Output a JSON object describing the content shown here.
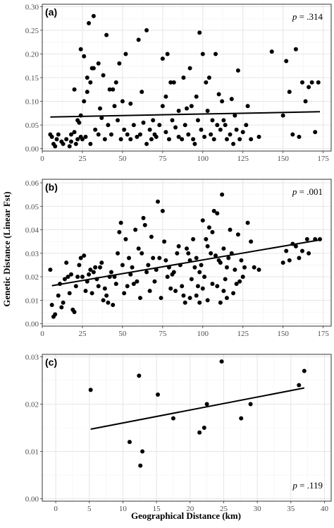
{
  "chart_data": [
    {
      "type": "scatter",
      "panel_label": "(a)",
      "annotation": {
        "italic": "p",
        "text": " = .314"
      },
      "xlim": [
        0,
        180
      ],
      "ylim": [
        -0.005,
        0.305
      ],
      "xticks": [
        0,
        25,
        50,
        75,
        100,
        125,
        150,
        175
      ],
      "yticks": [
        0.0,
        0.05,
        0.1,
        0.15,
        0.2,
        0.25,
        0.3
      ],
      "ytick_labels": [
        "0.00",
        "0.05",
        "0.10",
        "0.15",
        "0.20",
        "0.25",
        "0.30"
      ],
      "xtick_labels": [
        "0",
        "25",
        "50",
        "75",
        "100",
        "125",
        "150",
        "175"
      ],
      "trend_line": {
        "x": [
          5,
          173
        ],
        "y": [
          0.067,
          0.078
        ]
      },
      "grid": true,
      "points": [
        [
          5,
          0.03
        ],
        [
          6,
          0.025
        ],
        [
          7,
          0.01
        ],
        [
          8,
          0.005
        ],
        [
          9,
          0.02
        ],
        [
          10,
          0.03
        ],
        [
          12,
          0.015
        ],
        [
          13,
          0.01
        ],
        [
          15,
          0.02
        ],
        [
          17,
          0.005
        ],
        [
          18,
          0.015
        ],
        [
          18,
          0.03
        ],
        [
          20,
          0.035
        ],
        [
          21,
          0.01
        ],
        [
          22,
          0.02
        ],
        [
          23,
          0.055
        ],
        [
          24,
          0.07
        ],
        [
          25,
          0.02
        ],
        [
          26,
          0.1
        ],
        [
          28,
          0.12
        ],
        [
          30,
          0.14
        ],
        [
          31,
          0.17
        ],
        [
          32,
          0.17
        ],
        [
          24,
          0.21
        ],
        [
          26,
          0.195
        ],
        [
          28,
          0.15
        ],
        [
          29,
          0.265
        ],
        [
          32,
          0.28
        ],
        [
          35,
          0.18
        ],
        [
          36,
          0.085
        ],
        [
          38,
          0.155
        ],
        [
          40,
          0.24
        ],
        [
          42,
          0.125
        ],
        [
          44,
          0.125
        ],
        [
          46,
          0.14
        ],
        [
          48,
          0.18
        ],
        [
          50,
          0.1
        ],
        [
          52,
          0.2
        ],
        [
          55,
          0.095
        ],
        [
          60,
          0.23
        ],
        [
          62,
          0.12
        ],
        [
          65,
          0.25
        ],
        [
          68,
          0.02
        ],
        [
          70,
          0.03
        ],
        [
          75,
          0.19
        ],
        [
          77,
          0.11
        ],
        [
          78,
          0.2
        ],
        [
          80,
          0.14
        ],
        [
          82,
          0.14
        ],
        [
          85,
          0.025
        ],
        [
          88,
          0.15
        ],
        [
          90,
          0.085
        ],
        [
          92,
          0.17
        ],
        [
          94,
          0.02
        ],
        [
          96,
          0.11
        ],
        [
          98,
          0.245
        ],
        [
          100,
          0.2
        ],
        [
          102,
          0.14
        ],
        [
          104,
          0.15
        ],
        [
          106,
          0.06
        ],
        [
          108,
          0.2
        ],
        [
          110,
          0.115
        ],
        [
          112,
          0.1
        ],
        [
          114,
          0.05
        ],
        [
          118,
          0.105
        ],
        [
          120,
          0.07
        ],
        [
          122,
          0.165
        ],
        [
          125,
          0.035
        ],
        [
          128,
          0.09
        ],
        [
          130,
          0.02
        ],
        [
          135,
          0.025
        ],
        [
          143,
          0.205
        ],
        [
          150,
          0.07
        ],
        [
          152,
          0.185
        ],
        [
          154,
          0.12
        ],
        [
          156,
          0.03
        ],
        [
          158,
          0.21
        ],
        [
          160,
          0.025
        ],
        [
          162,
          0.14
        ],
        [
          164,
          0.1
        ],
        [
          166,
          0.13
        ],
        [
          168,
          0.14
        ],
        [
          170,
          0.035
        ],
        [
          172,
          0.14
        ],
        [
          20,
          0.125
        ],
        [
          22,
          0.06
        ],
        [
          24,
          0.025
        ],
        [
          27,
          0.025
        ],
        [
          30,
          0.01
        ],
        [
          33,
          0.04
        ],
        [
          35,
          0.03
        ],
        [
          37,
          0.065
        ],
        [
          39,
          0.02
        ],
        [
          41,
          0.05
        ],
        [
          43,
          0.03
        ],
        [
          45,
          0.09
        ],
        [
          47,
          0.06
        ],
        [
          49,
          0.02
        ],
        [
          51,
          0.04
        ],
        [
          53,
          0.03
        ],
        [
          55,
          0.02
        ],
        [
          57,
          0.05
        ],
        [
          59,
          0.025
        ],
        [
          61,
          0.03
        ],
        [
          63,
          0.055
        ],
        [
          65,
          0.01
        ],
        [
          67,
          0.04
        ],
        [
          69,
          0.06
        ],
        [
          71,
          0.025
        ],
        [
          73,
          0.05
        ],
        [
          75,
          0.09
        ],
        [
          77,
          0.035
        ],
        [
          79,
          0.02
        ],
        [
          81,
          0.06
        ],
        [
          83,
          0.045
        ],
        [
          85,
          0.08
        ],
        [
          87,
          0.02
        ],
        [
          89,
          0.05
        ],
        [
          91,
          0.03
        ],
        [
          93,
          0.09
        ],
        [
          95,
          0.01
        ],
        [
          97,
          0.06
        ],
        [
          99,
          0.04
        ],
        [
          101,
          0.025
        ],
        [
          103,
          0.08
        ],
        [
          105,
          0.03
        ],
        [
          107,
          0.02
        ],
        [
          109,
          0.05
        ],
        [
          111,
          0.04
        ],
        [
          113,
          0.06
        ],
        [
          115,
          0.02
        ],
        [
          117,
          0.03
        ],
        [
          119,
          0.01
        ],
        [
          121,
          0.04
        ],
        [
          123,
          0.02
        ],
        [
          127,
          0.05
        ]
      ]
    },
    {
      "type": "scatter",
      "panel_label": "(b)",
      "annotation": {
        "italic": "p",
        "text": " = .001"
      },
      "xlim": [
        0,
        180
      ],
      "ylim": [
        -0.001,
        0.0615
      ],
      "xticks": [
        0,
        25,
        50,
        75,
        100,
        125,
        150,
        175
      ],
      "yticks": [
        0.0,
        0.01,
        0.02,
        0.03,
        0.04,
        0.05,
        0.06
      ],
      "ytick_labels": [
        "0.00",
        "0.01",
        "0.02",
        "0.03",
        "0.04",
        "0.05",
        "0.06"
      ],
      "xtick_labels": [
        "0",
        "25",
        "50",
        "75",
        "100",
        "125",
        "150",
        "175"
      ],
      "trend_line": {
        "x": [
          6,
          173
        ],
        "y": [
          0.0162,
          0.0357
        ]
      },
      "grid": true,
      "points": [
        [
          5,
          0.023
        ],
        [
          6,
          0.008
        ],
        [
          7,
          0.003
        ],
        [
          8,
          0.004
        ],
        [
          10,
          0.012
        ],
        [
          11,
          0.017
        ],
        [
          12,
          0.007
        ],
        [
          13,
          0.009
        ],
        [
          15,
          0.026
        ],
        [
          16,
          0.02
        ],
        [
          18,
          0.021
        ],
        [
          19,
          0.006
        ],
        [
          20,
          0.005
        ],
        [
          22,
          0.02
        ],
        [
          23,
          0.025
        ],
        [
          24,
          0.028
        ],
        [
          25,
          0.02
        ],
        [
          26,
          0.029
        ],
        [
          27,
          0.014
        ],
        [
          28,
          0.018
        ],
        [
          30,
          0.023
        ],
        [
          32,
          0.022
        ],
        [
          33,
          0.024
        ],
        [
          35,
          0.016
        ],
        [
          37,
          0.026
        ],
        [
          38,
          0.01
        ],
        [
          40,
          0.012
        ],
        [
          42,
          0.02
        ],
        [
          44,
          0.008
        ],
        [
          45,
          0.02
        ],
        [
          47,
          0.03
        ],
        [
          48,
          0.039
        ],
        [
          49,
          0.043
        ],
        [
          50,
          0.025
        ],
        [
          52,
          0.036
        ],
        [
          54,
          0.028
        ],
        [
          55,
          0.021
        ],
        [
          57,
          0.017
        ],
        [
          58,
          0.04
        ],
        [
          60,
          0.032
        ],
        [
          62,
          0.03
        ],
        [
          63,
          0.045
        ],
        [
          64,
          0.042
        ],
        [
          66,
          0.025
        ],
        [
          68,
          0.037
        ],
        [
          70,
          0.018
        ],
        [
          72,
          0.052
        ],
        [
          73,
          0.028
        ],
        [
          75,
          0.048
        ],
        [
          76,
          0.035
        ],
        [
          78,
          0.02
        ],
        [
          80,
          0.015
        ],
        [
          82,
          0.022
        ],
        [
          84,
          0.03
        ],
        [
          86,
          0.025
        ],
        [
          88,
          0.012
        ],
        [
          90,
          0.032
        ],
        [
          91,
          0.03
        ],
        [
          92,
          0.027
        ],
        [
          93,
          0.019
        ],
        [
          94,
          0.036
        ],
        [
          95,
          0.024
        ],
        [
          96,
          0.028
        ],
        [
          97,
          0.016
        ],
        [
          98,
          0.022
        ],
        [
          99,
          0.025
        ],
        [
          100,
          0.044
        ],
        [
          101,
          0.02
        ],
        [
          102,
          0.036
        ],
        [
          103,
          0.033
        ],
        [
          104,
          0.041
        ],
        [
          105,
          0.03
        ],
        [
          106,
          0.039
        ],
        [
          107,
          0.048
        ],
        [
          108,
          0.029
        ],
        [
          109,
          0.047
        ],
        [
          110,
          0.027
        ],
        [
          111,
          0.026
        ],
        [
          112,
          0.055
        ],
        [
          113,
          0.032
        ],
        [
          114,
          0.019
        ],
        [
          115,
          0.024
        ],
        [
          116,
          0.028
        ],
        [
          117,
          0.04
        ],
        [
          118,
          0.03
        ],
        [
          120,
          0.023
        ],
        [
          122,
          0.038
        ],
        [
          124,
          0.027
        ],
        [
          125,
          0.02
        ],
        [
          128,
          0.043
        ],
        [
          130,
          0.035
        ],
        [
          132,
          0.024
        ],
        [
          135,
          0.023
        ],
        [
          150,
          0.026
        ],
        [
          152,
          0.031
        ],
        [
          154,
          0.027
        ],
        [
          156,
          0.034
        ],
        [
          158,
          0.033
        ],
        [
          160,
          0.028
        ],
        [
          162,
          0.031
        ],
        [
          165,
          0.036
        ],
        [
          166,
          0.03
        ],
        [
          170,
          0.036
        ],
        [
          173,
          0.036
        ],
        [
          14,
          0.019
        ],
        [
          17,
          0.013
        ],
        [
          21,
          0.016
        ],
        [
          29,
          0.021
        ],
        [
          31,
          0.013
        ],
        [
          34,
          0.019
        ],
        [
          36,
          0.024
        ],
        [
          39,
          0.015
        ],
        [
          41,
          0.009
        ],
        [
          43,
          0.022
        ],
        [
          46,
          0.017
        ],
        [
          51,
          0.013
        ],
        [
          53,
          0.016
        ],
        [
          56,
          0.024
        ],
        [
          59,
          0.018
        ],
        [
          61,
          0.011
        ],
        [
          65,
          0.022
        ],
        [
          67,
          0.014
        ],
        [
          69,
          0.028
        ],
        [
          71,
          0.023
        ],
        [
          74,
          0.011
        ],
        [
          77,
          0.027
        ],
        [
          79,
          0.024
        ],
        [
          81,
          0.021
        ],
        [
          83,
          0.014
        ],
        [
          85,
          0.033
        ],
        [
          87,
          0.016
        ],
        [
          89,
          0.009
        ],
        [
          92,
          0.011
        ],
        [
          96,
          0.012
        ],
        [
          98,
          0.009
        ],
        [
          100,
          0.015
        ],
        [
          103,
          0.01
        ],
        [
          106,
          0.017
        ],
        [
          109,
          0.016
        ],
        [
          111,
          0.009
        ],
        [
          113,
          0.014
        ],
        [
          115,
          0.011
        ],
        [
          119,
          0.013
        ],
        [
          121,
          0.017
        ],
        [
          123,
          0.018
        ],
        [
          126,
          0.024
        ]
      ]
    },
    {
      "type": "scatter",
      "panel_label": "(c)",
      "annotation": {
        "italic": "p",
        "text": " = .119"
      },
      "xlim": [
        -2,
        41
      ],
      "ylim": [
        -0.0005,
        0.0305
      ],
      "xticks": [
        0,
        5,
        10,
        15,
        20,
        25,
        30,
        35,
        40
      ],
      "yticks": [
        0.0,
        0.01,
        0.02,
        0.03
      ],
      "ytick_labels": [
        "0.00",
        "0.01",
        "0.02",
        "0.03"
      ],
      "xtick_labels": [
        "0",
        "5",
        "10",
        "15",
        "20",
        "25",
        "30",
        "35",
        "40"
      ],
      "trend_line": {
        "x": [
          5.2,
          37
        ],
        "y": [
          0.0147,
          0.0234
        ]
      },
      "grid": true,
      "points": [
        [
          5.2,
          0.023
        ],
        [
          11,
          0.012
        ],
        [
          12.4,
          0.026
        ],
        [
          12.6,
          0.007
        ],
        [
          12.9,
          0.01
        ],
        [
          15.2,
          0.022
        ],
        [
          17.5,
          0.017
        ],
        [
          21.4,
          0.014
        ],
        [
          22.1,
          0.015
        ],
        [
          22.5,
          0.02
        ],
        [
          24.7,
          0.029
        ],
        [
          27.6,
          0.017
        ],
        [
          29,
          0.02
        ],
        [
          36.2,
          0.024
        ],
        [
          37,
          0.027
        ]
      ]
    }
  ],
  "y_axis_title": "Genetic Distance (Linear Fst)",
  "x_axis_title": "Geographical Distance (km)"
}
